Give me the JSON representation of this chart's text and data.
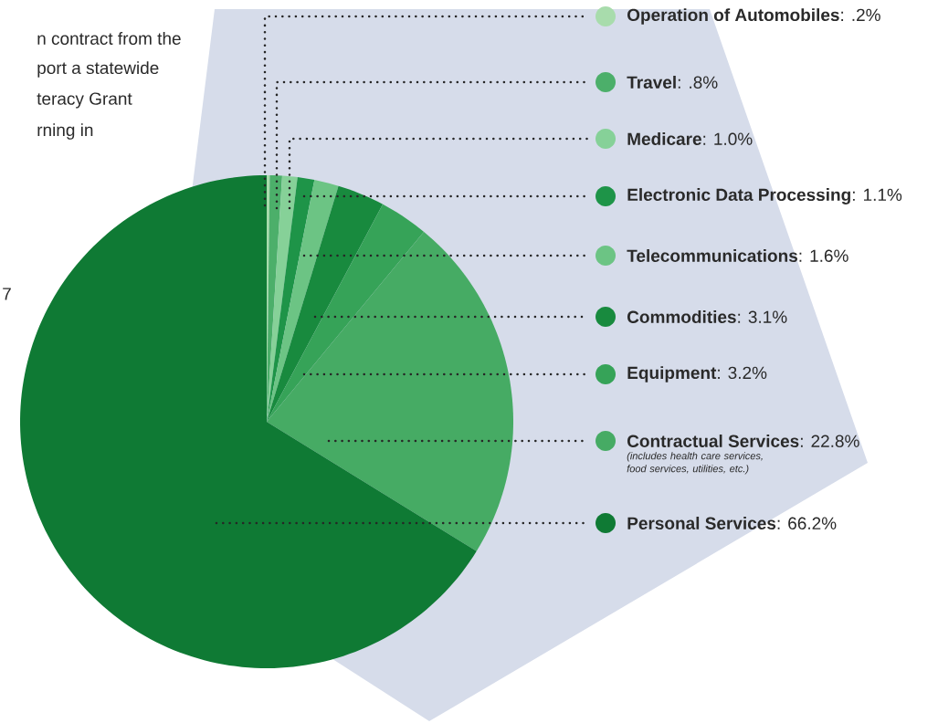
{
  "chart_data": {
    "type": "pie",
    "categories": [
      "Operation of Automobiles",
      "Travel",
      "Medicare",
      "Electronic Data Processing",
      "Telecommunications",
      "Commodities",
      "Equipment",
      "Contractual Services",
      "Personal Services"
    ],
    "values": [
      0.2,
      0.8,
      1.0,
      1.1,
      1.6,
      3.1,
      3.2,
      22.8,
      66.2
    ],
    "value_labels": [
      ": .2%",
      ": .8%",
      ": 1.0%",
      ": 1.1%",
      ": 1.6%",
      ": 3.1%",
      ": 3.2%",
      ": 22.8%",
      ": 66.2%"
    ],
    "legend": "right",
    "colors": [
      "#a8dcac",
      "#4caf6a",
      "#86d198",
      "#1e9448",
      "#6cc484",
      "#188a3e",
      "#36a358",
      "#46ab64",
      "#0f7a34"
    ],
    "annotations": [
      "n contract from the",
      "port a statewide",
      "teracy Grant",
      "rning in",
      "7",
      "(includes health care services, food services, utilities, etc.)"
    ]
  }
}
